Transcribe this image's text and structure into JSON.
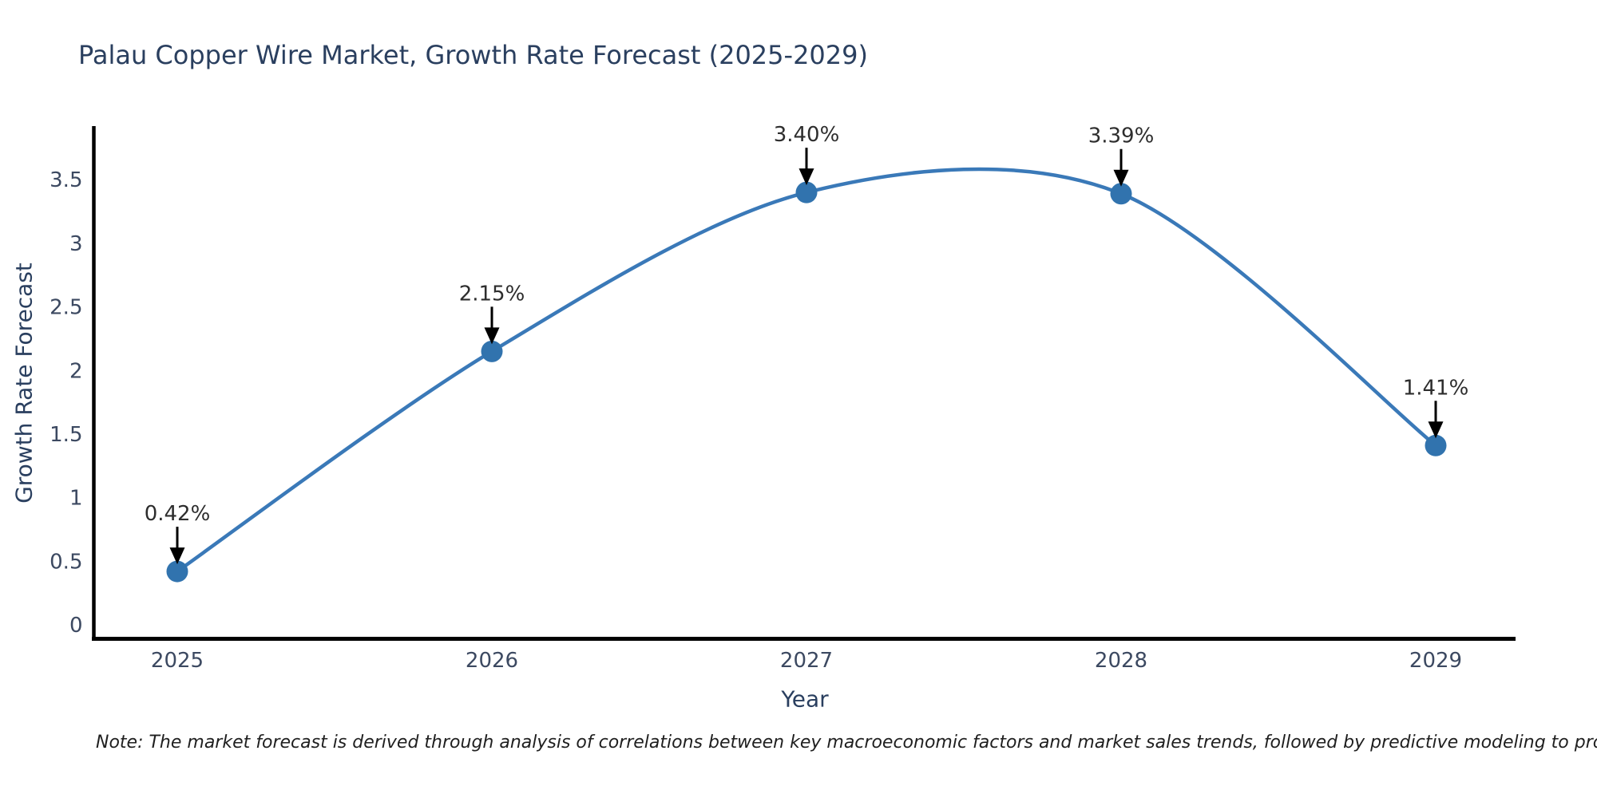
{
  "title": "Palau Copper Wire Market, Growth Rate Forecast (2025-2029)",
  "note": "Note: The market forecast is derived through analysis of correlations between key macroeconomic factors and market sales trends, followed by predictive modeling to project future sales",
  "chart_data": {
    "type": "line",
    "title": "Palau Copper Wire Market, Growth Rate Forecast (2025-2029)",
    "xlabel": "Year",
    "ylabel": "Growth Rate Forecast",
    "x": [
      2025,
      2026,
      2027,
      2028,
      2029
    ],
    "values": [
      0.42,
      2.15,
      3.4,
      3.39,
      1.41
    ],
    "point_labels": [
      "0.42%",
      "2.15%",
      "3.40%",
      "3.39%",
      "1.41%"
    ],
    "ytick_labels": [
      "0",
      "0.5",
      "1",
      "1.5",
      "2",
      "2.5",
      "3",
      "3.5"
    ],
    "ytick_values": [
      0,
      0.5,
      1,
      1.5,
      2,
      2.5,
      3,
      3.5
    ],
    "ylim": [
      -0.11,
      3.91
    ],
    "xlim": [
      2024.73,
      2029.26
    ],
    "line_style": "spline-smoothed",
    "markers": "circle",
    "grid": false,
    "legend": "none",
    "annotations": "value labels with black down arrows above each point",
    "colors": {
      "line": "#3a79b8",
      "marker": "#3173ae",
      "axis_line": "#000000",
      "title_text": "#2a3f5f",
      "axis_title_text": "#2a3f5f",
      "tick_text": "#3c4961",
      "annotation_text": "#2d2d2d",
      "arrow": "#000000",
      "background": "#ffffff"
    }
  }
}
